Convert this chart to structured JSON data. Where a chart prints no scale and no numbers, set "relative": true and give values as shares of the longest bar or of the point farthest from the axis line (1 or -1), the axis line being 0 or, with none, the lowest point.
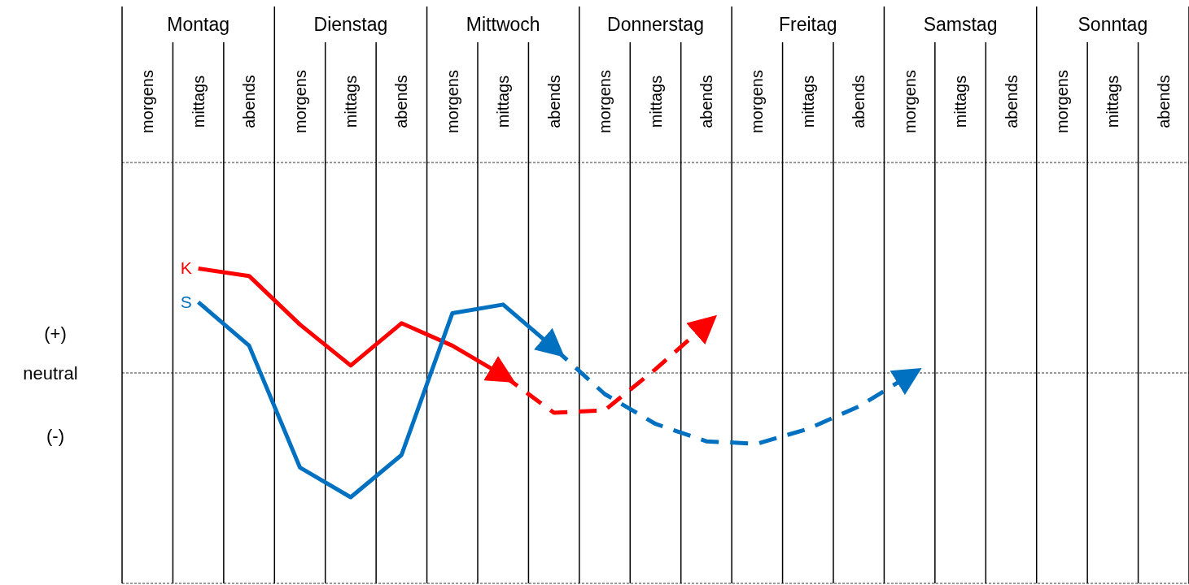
{
  "chart_data": {
    "type": "line",
    "relative": true,
    "categories": [
      "morgens",
      "mittags",
      "abends",
      "morgens",
      "mittags",
      "abends",
      "morgens",
      "mittags",
      "abends",
      "morgens",
      "mittags",
      "abends",
      "morgens",
      "mittags",
      "abends",
      "morgens",
      "mittags",
      "abends",
      "morgens",
      "mittags",
      "abends"
    ],
    "ref_lines": [
      {
        "axis": "y",
        "value": 0,
        "label": "neutral",
        "line_style": "dashed",
        "color": "#000000"
      }
    ],
    "annotations": [
      "Montag",
      "Dienstag",
      "Mittwoch",
      "Donnerstag",
      "Freitag",
      "Samstag",
      "Sonntag",
      "(+)",
      "(-)"
    ],
    "series": [
      {
        "name": "K",
        "color": "#ff0000",
        "line_style": "solid",
        "values": [
          null,
          0.84,
          0.78,
          0.39,
          0.06,
          0.4,
          0.22,
          -0.02,
          null,
          null,
          null,
          null,
          null,
          null,
          null,
          null,
          null,
          null,
          null,
          null,
          null
        ]
      },
      {
        "color": "#ff0000",
        "line_style": "dashed",
        "values": [
          null,
          null,
          null,
          null,
          null,
          null,
          null,
          -0.02,
          -0.32,
          -0.3,
          0.03,
          0.39,
          null,
          null,
          null,
          null,
          null,
          null,
          null,
          null,
          null
        ]
      },
      {
        "name": "S",
        "color": "#0070c0",
        "line_style": "solid",
        "values": [
          null,
          0.57,
          0.22,
          -0.76,
          -1,
          -0.66,
          0.48,
          0.55,
          0.2,
          null,
          null,
          null,
          null,
          null,
          null,
          null,
          null,
          null,
          null,
          null,
          null
        ]
      },
      {
        "color": "#0070c0",
        "line_style": "dashed",
        "values": [
          null,
          null,
          null,
          null,
          null,
          null,
          null,
          null,
          0.2,
          -0.17,
          -0.41,
          -0.55,
          -0.57,
          -0.45,
          -0.27,
          -0.02,
          null,
          null,
          null,
          null,
          null
        ]
      }
    ]
  }
}
